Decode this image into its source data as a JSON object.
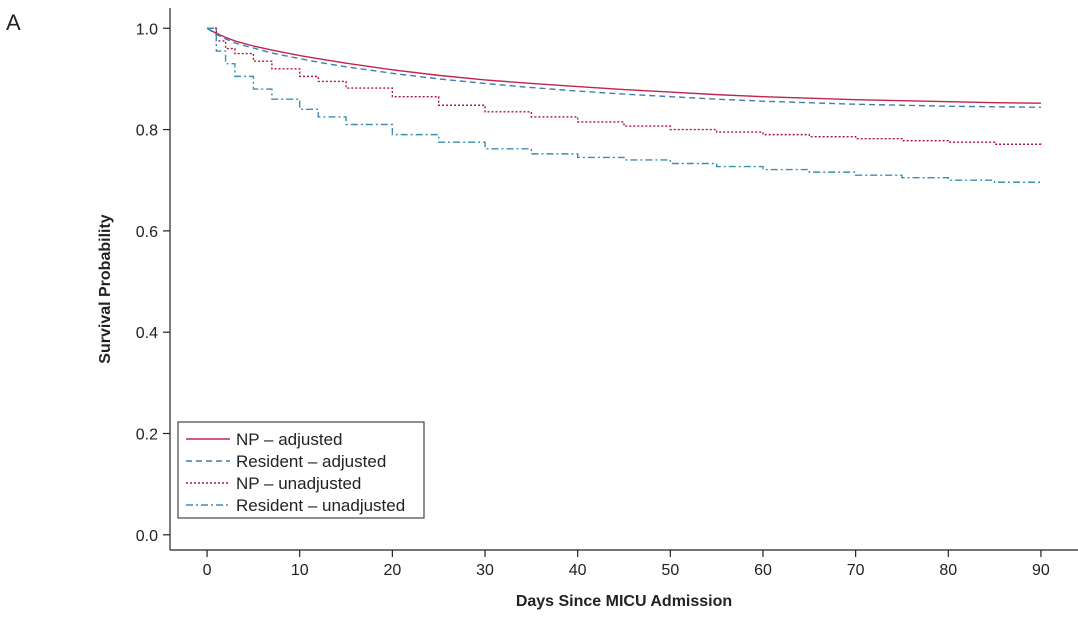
{
  "panel_label": "A",
  "chart_data": {
    "type": "line",
    "title": "",
    "xlabel": "Days Since MICU Admission",
    "ylabel": "Survival Probability",
    "xlim": [
      -4,
      94
    ],
    "ylim": [
      -0.03,
      1.04
    ],
    "xticks": [
      0,
      10,
      20,
      30,
      40,
      50,
      60,
      70,
      80,
      90
    ],
    "yticks": [
      0.0,
      0.2,
      0.4,
      0.6,
      0.8,
      1.0
    ],
    "xtick_labels": [
      "0",
      "10",
      "20",
      "30",
      "40",
      "50",
      "60",
      "70",
      "80",
      "90"
    ],
    "ytick_labels": [
      "0.0",
      "0.2",
      "0.4",
      "0.6",
      "0.8",
      "1.0"
    ],
    "grid": false,
    "legend": {
      "position": "bottom-left"
    },
    "x": [
      0,
      1,
      2,
      3,
      5,
      7,
      10,
      12,
      15,
      20,
      25,
      30,
      35,
      40,
      45,
      50,
      55,
      60,
      65,
      70,
      75,
      80,
      85,
      90
    ],
    "series": [
      {
        "name": "NP – adjusted",
        "color": "#c0254f",
        "style": "solid",
        "step": false,
        "values": [
          1.0,
          0.99,
          0.982,
          0.975,
          0.965,
          0.957,
          0.946,
          0.94,
          0.931,
          0.918,
          0.907,
          0.898,
          0.891,
          0.885,
          0.879,
          0.874,
          0.869,
          0.865,
          0.862,
          0.859,
          0.857,
          0.855,
          0.853,
          0.852
        ]
      },
      {
        "name": "Resident – adjusted",
        "color": "#3d7fb0",
        "style": "dashed",
        "step": false,
        "values": [
          1.0,
          0.988,
          0.979,
          0.971,
          0.961,
          0.951,
          0.94,
          0.933,
          0.924,
          0.911,
          0.9,
          0.891,
          0.883,
          0.876,
          0.87,
          0.865,
          0.86,
          0.856,
          0.853,
          0.85,
          0.848,
          0.846,
          0.845,
          0.844
        ]
      },
      {
        "name": "NP – unadjusted",
        "color": "#b0143c",
        "style": "dotted",
        "step": true,
        "values": [
          1.0,
          0.975,
          0.96,
          0.95,
          0.935,
          0.92,
          0.905,
          0.895,
          0.882,
          0.865,
          0.848,
          0.835,
          0.825,
          0.815,
          0.807,
          0.8,
          0.795,
          0.79,
          0.786,
          0.782,
          0.778,
          0.775,
          0.771,
          0.767
        ]
      },
      {
        "name": "Resident – unadjusted",
        "color": "#3a8fb0",
        "style": "dashdot",
        "step": true,
        "values": [
          1.0,
          0.955,
          0.93,
          0.905,
          0.88,
          0.86,
          0.84,
          0.825,
          0.81,
          0.79,
          0.775,
          0.762,
          0.752,
          0.745,
          0.74,
          0.733,
          0.727,
          0.721,
          0.716,
          0.71,
          0.705,
          0.7,
          0.696,
          0.693
        ]
      }
    ]
  }
}
